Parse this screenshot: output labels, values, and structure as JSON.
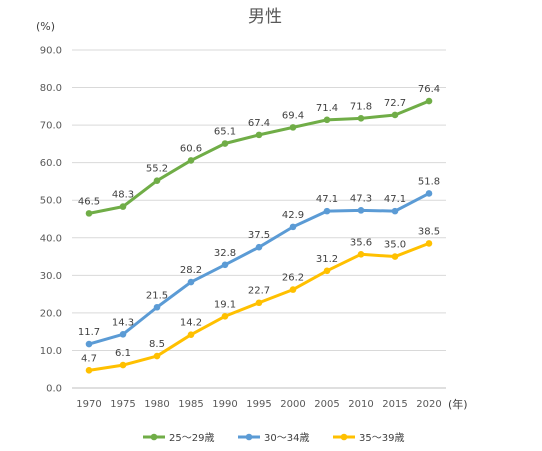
{
  "chart_data": {
    "type": "line",
    "title": "男性",
    "ylabel": "(%)",
    "xlabel": "(年)",
    "ylim": [
      0,
      90
    ],
    "yticks": [
      "0.0",
      "10.0",
      "20.0",
      "30.0",
      "40.0",
      "50.0",
      "60.0",
      "70.0",
      "80.0",
      "90.0"
    ],
    "categories": [
      "1970",
      "1975",
      "1980",
      "1985",
      "1990",
      "1995",
      "2000",
      "2005",
      "2010",
      "2015",
      "2020"
    ],
    "grid": true,
    "legend_position": "bottom",
    "series": [
      {
        "name": "25～29歳",
        "color": "#70ad47",
        "values": [
          46.5,
          48.3,
          55.2,
          60.6,
          65.1,
          67.4,
          69.4,
          71.4,
          71.8,
          72.7,
          76.4
        ]
      },
      {
        "name": "30～34歳",
        "color": "#5b9bd5",
        "values": [
          11.7,
          14.3,
          21.5,
          28.2,
          32.8,
          37.5,
          42.9,
          47.1,
          47.3,
          47.1,
          51.8
        ]
      },
      {
        "name": "35～39歳",
        "color": "#ffc000",
        "values": [
          4.7,
          6.1,
          8.5,
          14.2,
          19.1,
          22.7,
          26.2,
          31.2,
          35.6,
          35.0,
          38.5
        ]
      }
    ]
  }
}
